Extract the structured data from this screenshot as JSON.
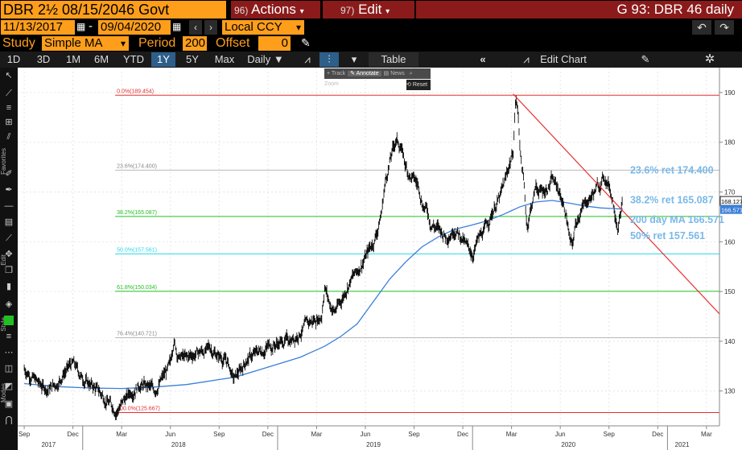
{
  "header": {
    "ticker": "DBR 2½ 08/15/2046 Govt",
    "actions_num": "96)",
    "actions_label": "Actions",
    "edit_num": "97)",
    "edit_label": "Edit",
    "graph_title": "G 93: DBR 46 daily"
  },
  "range": {
    "start": "11/13/2017",
    "end": "09/04/2020",
    "sep": "-",
    "currency": "Local CCY"
  },
  "study": {
    "label": "Study",
    "value": "Simple MA",
    "period_label": "Period",
    "period": "200",
    "offset_label": "Offset",
    "offset": "0"
  },
  "toolbar": {
    "periods": [
      "1D",
      "3D",
      "1M",
      "6M",
      "YTD",
      "1Y",
      "5Y",
      "Max"
    ],
    "selected": "1Y",
    "frequency": "Daily",
    "table": "Table",
    "edit_chart": "Edit Chart"
  },
  "mini_toolbar": {
    "track": "Track",
    "annotate": "Annotate",
    "news": "News",
    "zoom": "Zoom",
    "reset": "Reset"
  },
  "sidebar_labels": {
    "favorites": "Favorites",
    "edit": "Edit",
    "style": "Style",
    "modes": "Modes"
  },
  "colors": {
    "orange": "#ff9e1b",
    "dark_red": "#8b1a1a",
    "ma_blue": "#3b7fd9",
    "fib_red": "#e03030",
    "fib_green": "#21c021",
    "fib_cyan": "#28d8e8",
    "trend_red": "#e83030"
  },
  "chart_data": {
    "type": "line",
    "ylim": [
      123,
      195
    ],
    "yticks": [
      130,
      140,
      150,
      160,
      170,
      180,
      190
    ],
    "x_months": [
      {
        "label": "Sep",
        "m": 0
      },
      {
        "label": "Dec",
        "m": 3
      },
      {
        "label": "Mar",
        "m": 6
      },
      {
        "label": "Jun",
        "m": 9
      },
      {
        "label": "Sep",
        "m": 12
      },
      {
        "label": "Dec",
        "m": 15
      },
      {
        "label": "Mar",
        "m": 18
      },
      {
        "label": "Jun",
        "m": 21
      },
      {
        "label": "Sep",
        "m": 24
      },
      {
        "label": "Dec",
        "m": 27
      },
      {
        "label": "Mar",
        "m": 30
      },
      {
        "label": "Jun",
        "m": 33
      },
      {
        "label": "Sep",
        "m": 36
      },
      {
        "label": "Dec",
        "m": 39
      },
      {
        "label": "Mar",
        "m": 42
      }
    ],
    "x_years": [
      {
        "label": "2017",
        "m": 1.5
      },
      {
        "label": "2018",
        "m": 9.5
      },
      {
        "label": "2019",
        "m": 21.5
      },
      {
        "label": "2020",
        "m": 33.5
      },
      {
        "label": "2021",
        "m": 40.5
      }
    ],
    "xrange_months": [
      -0.4,
      42.8
    ],
    "price": [
      [
        0,
        134.5
      ],
      [
        0.5,
        133
      ],
      [
        1,
        131
      ],
      [
        1.5,
        130.5
      ],
      [
        2,
        131.5
      ],
      [
        2.5,
        134
      ],
      [
        3,
        135.5
      ],
      [
        3.5,
        133
      ],
      [
        4,
        131.5
      ],
      [
        4.5,
        130.2
      ],
      [
        5,
        128.5
      ],
      [
        5.4,
        127
      ],
      [
        5.7,
        126.2
      ],
      [
        6,
        127.5
      ],
      [
        6.5,
        129.5
      ],
      [
        7,
        131.5
      ],
      [
        7.5,
        131
      ],
      [
        8,
        130
      ],
      [
        8.5,
        132.5
      ],
      [
        9,
        135
      ],
      [
        9.2,
        140.5
      ],
      [
        9.5,
        137
      ],
      [
        10,
        136.5
      ],
      [
        10.5,
        137.5
      ],
      [
        11,
        138
      ],
      [
        11.5,
        138.5
      ],
      [
        12,
        137
      ],
      [
        12.5,
        136
      ],
      [
        12.9,
        132.2
      ],
      [
        13.3,
        134
      ],
      [
        13.7,
        136.5
      ],
      [
        14,
        137
      ],
      [
        14.5,
        138
      ],
      [
        15,
        139
      ],
      [
        15.5,
        139.5
      ],
      [
        16,
        140
      ],
      [
        16.5,
        140.5
      ],
      [
        17,
        142
      ],
      [
        17.5,
        143.5
      ],
      [
        18,
        144.5
      ],
      [
        18.3,
        145
      ],
      [
        18.5,
        151.5
      ],
      [
        18.8,
        147.5
      ],
      [
        19.1,
        146
      ],
      [
        19.5,
        148
      ],
      [
        20,
        152
      ],
      [
        20.5,
        154
      ],
      [
        21,
        157
      ],
      [
        21.5,
        160
      ],
      [
        21.8,
        163
      ],
      [
        22,
        166
      ],
      [
        22.2,
        171.5
      ],
      [
        22.5,
        176
      ],
      [
        22.7,
        178.5
      ],
      [
        22.9,
        180.5
      ],
      [
        23.2,
        179
      ],
      [
        23.5,
        175
      ],
      [
        23.8,
        173
      ],
      [
        24,
        172.5
      ],
      [
        24.3,
        171
      ],
      [
        24.5,
        168
      ],
      [
        24.8,
        166.5
      ],
      [
        25,
        164
      ],
      [
        25.5,
        162.5
      ],
      [
        26,
        161
      ],
      [
        26.5,
        163
      ],
      [
        27,
        160.5
      ],
      [
        27.3,
        158.5
      ],
      [
        27.6,
        157.5
      ],
      [
        27.9,
        160
      ],
      [
        28.3,
        162
      ],
      [
        28.7,
        165
      ],
      [
        29,
        167.5
      ],
      [
        29.3,
        169
      ],
      [
        29.6,
        172
      ],
      [
        29.9,
        176
      ],
      [
        30.1,
        178
      ],
      [
        30.25,
        189
      ],
      [
        30.4,
        186
      ],
      [
        30.55,
        178
      ],
      [
        30.75,
        172
      ],
      [
        30.95,
        163
      ],
      [
        31.2,
        167
      ],
      [
        31.5,
        171
      ],
      [
        31.8,
        170
      ],
      [
        32.1,
        170.5
      ],
      [
        32.5,
        172.5
      ],
      [
        32.8,
        171
      ],
      [
        33.1,
        168.5
      ],
      [
        33.4,
        165
      ],
      [
        33.6,
        160
      ],
      [
        33.75,
        159
      ],
      [
        33.95,
        163.5
      ],
      [
        34.2,
        166
      ],
      [
        34.6,
        168
      ],
      [
        35,
        169.5
      ],
      [
        35.4,
        171.5
      ],
      [
        35.7,
        173
      ],
      [
        36,
        171.5
      ],
      [
        36.2,
        169
      ],
      [
        36.4,
        166
      ],
      [
        36.55,
        163.5
      ],
      [
        36.7,
        165.5
      ],
      [
        36.85,
        168.127
      ]
    ],
    "ma200": [
      [
        0,
        131.5
      ],
      [
        2,
        130.9
      ],
      [
        4,
        130.6
      ],
      [
        6,
        130.5
      ],
      [
        8,
        130.8
      ],
      [
        10,
        131.3
      ],
      [
        12,
        132.3
      ],
      [
        13,
        132.8
      ],
      [
        15,
        134.8
      ],
      [
        17,
        136.8
      ],
      [
        18.5,
        139
      ],
      [
        19.5,
        141
      ],
      [
        20.5,
        143.5
      ],
      [
        21.5,
        148
      ],
      [
        22.5,
        152.5
      ],
      [
        23.5,
        156
      ],
      [
        24.5,
        159
      ],
      [
        25.5,
        161
      ],
      [
        26.5,
        162.5
      ],
      [
        27.5,
        163.3
      ],
      [
        28.5,
        164.2
      ],
      [
        29.5,
        165.5
      ],
      [
        30.5,
        167
      ],
      [
        31.5,
        168
      ],
      [
        32.5,
        168.3
      ],
      [
        33.5,
        167.8
      ],
      [
        34.5,
        167.2
      ],
      [
        35.5,
        166.8
      ],
      [
        36.85,
        166.571
      ]
    ],
    "fib_levels": [
      {
        "label": "0.0%(189.454)",
        "value": 189.454,
        "color": "#e03030"
      },
      {
        "label": "23.6%(174.400)",
        "value": 174.4,
        "color": "#b8b8b8"
      },
      {
        "label": "38.2%(165.087)",
        "value": 165.087,
        "color": "#21c021"
      },
      {
        "label": "50.0%(157.561)",
        "value": 157.561,
        "color": "#28d8e8"
      },
      {
        "label": "61.8%(150.034)",
        "value": 150.034,
        "color": "#21c021"
      },
      {
        "label": "76.4%(140.721)",
        "value": 140.721,
        "color": "#b8b8b8"
      },
      {
        "label": "100.0%(125.667)",
        "value": 125.667,
        "color": "#e03030"
      }
    ],
    "trendline": [
      [
        30.1,
        189.7
      ],
      [
        42.8,
        145.5
      ]
    ],
    "last_price": "168.127",
    "last_ma": "166.571",
    "annotations": [
      {
        "text": "23.6% ret 174.400",
        "value": 174.4
      },
      {
        "text": "38.2% ret 165.087",
        "value": 168.4
      },
      {
        "text": "200 day MA 166.571",
        "value": 164.4
      },
      {
        "text": "50% ret 157.561",
        "value": 161.2
      }
    ]
  }
}
